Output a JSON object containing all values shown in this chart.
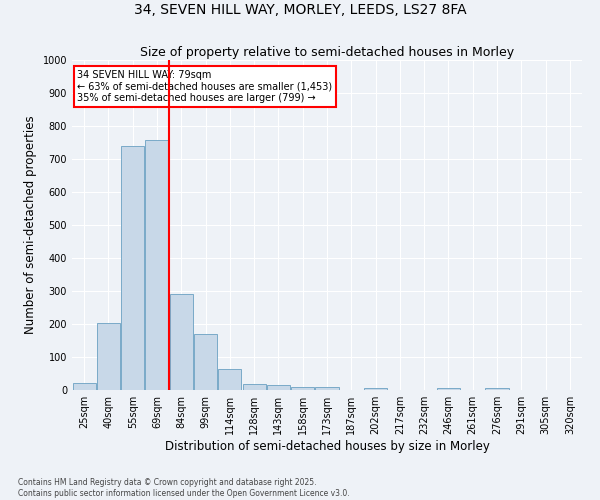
{
  "title1": "34, SEVEN HILL WAY, MORLEY, LEEDS, LS27 8FA",
  "title2": "Size of property relative to semi-detached houses in Morley",
  "xlabel": "Distribution of semi-detached houses by size in Morley",
  "ylabel": "Number of semi-detached properties",
  "categories": [
    "25sqm",
    "40sqm",
    "55sqm",
    "69sqm",
    "84sqm",
    "99sqm",
    "114sqm",
    "128sqm",
    "143sqm",
    "158sqm",
    "173sqm",
    "187sqm",
    "202sqm",
    "217sqm",
    "232sqm",
    "246sqm",
    "261sqm",
    "276sqm",
    "291sqm",
    "305sqm",
    "320sqm"
  ],
  "values": [
    22,
    202,
    738,
    757,
    290,
    170,
    65,
    18,
    14,
    10,
    10,
    0,
    5,
    0,
    0,
    5,
    0,
    5,
    0,
    0,
    0
  ],
  "bar_color": "#c8d8e8",
  "bar_edge_color": "#7aaac8",
  "annotation_text": "34 SEVEN HILL WAY: 79sqm\n← 63% of semi-detached houses are smaller (1,453)\n35% of semi-detached houses are larger (799) →",
  "annotation_box_color": "white",
  "annotation_box_edge_color": "red",
  "vline_color": "red",
  "vline_x": 3.5,
  "ylim": [
    0,
    1000
  ],
  "yticks": [
    0,
    100,
    200,
    300,
    400,
    500,
    600,
    700,
    800,
    900,
    1000
  ],
  "footnote": "Contains HM Land Registry data © Crown copyright and database right 2025.\nContains public sector information licensed under the Open Government Licence v3.0.",
  "bg_color": "#eef2f7",
  "grid_color": "#ffffff",
  "title_fontsize": 10,
  "subtitle_fontsize": 9,
  "tick_fontsize": 7,
  "label_fontsize": 8.5,
  "footnote_fontsize": 5.5
}
